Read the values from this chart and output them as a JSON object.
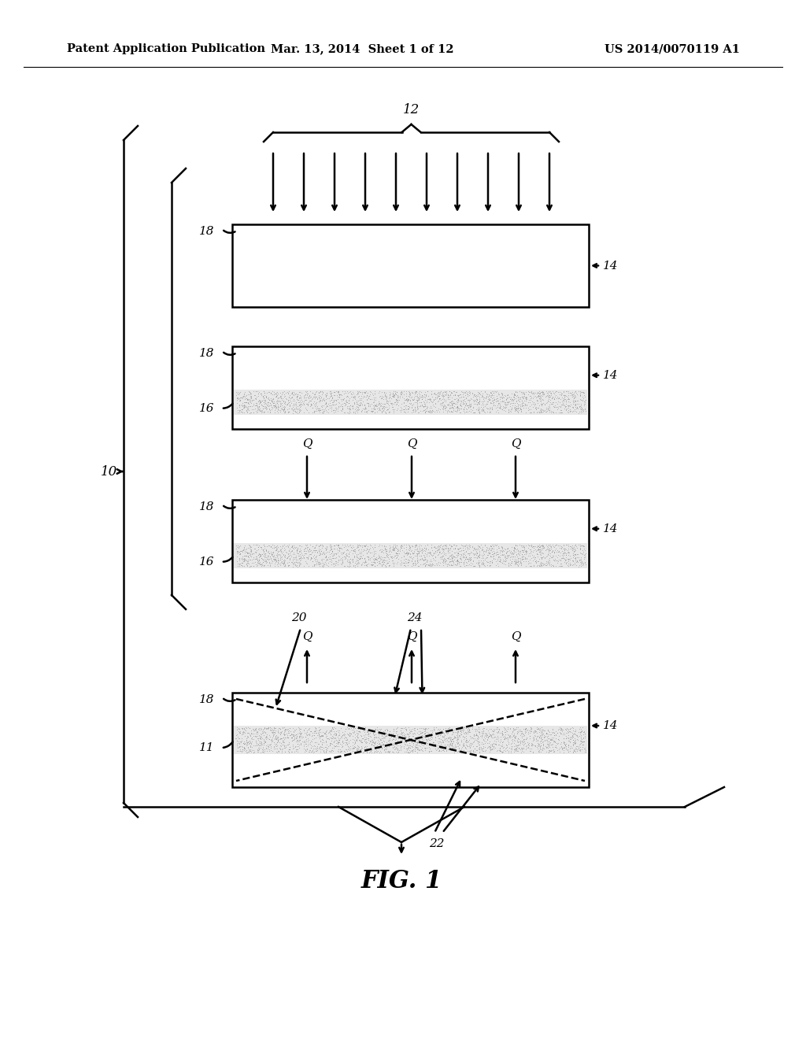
{
  "header_left": "Patent Application Publication",
  "header_mid": "Mar. 13, 2014  Sheet 1 of 12",
  "header_right": "US 2014/0070119 A1",
  "figure_label": "FIG. 1",
  "bg_color": "#ffffff",
  "line_color": "#000000",
  "header_fontsize": 10.5,
  "label_fontsize": 11,
  "fig_label_fontsize": 22
}
